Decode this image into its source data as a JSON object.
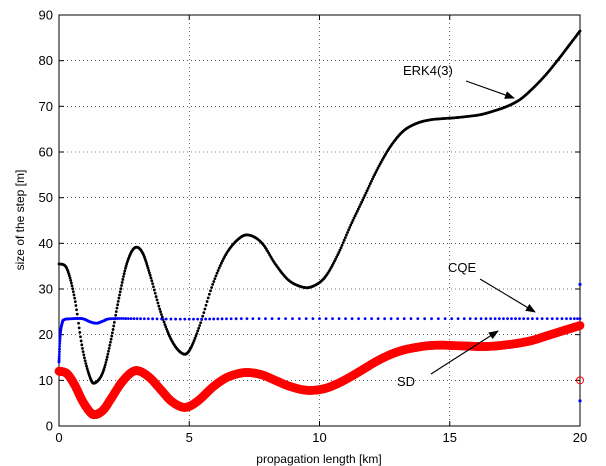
{
  "chart_data": {
    "type": "scatter",
    "title": "",
    "xlabel": "propagation length [km]",
    "ylabel": "size of the step [m]",
    "xlim": [
      0,
      20
    ],
    "ylim": [
      0,
      90
    ],
    "x_ticks": [
      "0",
      "5",
      "10",
      "15",
      "20"
    ],
    "y_ticks": [
      "0",
      "10",
      "20",
      "30",
      "40",
      "50",
      "60",
      "70",
      "80",
      "90"
    ],
    "grid": true,
    "legend": "none",
    "series": [
      {
        "name": "ERK4(3)",
        "color": "#000000",
        "marker": "dot",
        "points": [
          [
            0,
            35.5
          ],
          [
            0.3,
            34.5
          ],
          [
            0.6,
            28
          ],
          [
            0.9,
            17
          ],
          [
            1.2,
            10.5
          ],
          [
            1.4,
            9.5
          ],
          [
            1.7,
            12
          ],
          [
            2.0,
            19
          ],
          [
            2.3,
            28
          ],
          [
            2.6,
            35.5
          ],
          [
            2.9,
            39
          ],
          [
            3.2,
            38
          ],
          [
            3.5,
            33
          ],
          [
            3.9,
            25
          ],
          [
            4.3,
            19
          ],
          [
            4.7,
            16
          ],
          [
            5.0,
            16.5
          ],
          [
            5.4,
            22
          ],
          [
            5.9,
            31
          ],
          [
            6.4,
            37.5
          ],
          [
            6.9,
            41
          ],
          [
            7.3,
            41.8
          ],
          [
            7.8,
            40
          ],
          [
            8.3,
            35.5
          ],
          [
            8.8,
            32
          ],
          [
            9.3,
            30.5
          ],
          [
            9.7,
            30.5
          ],
          [
            10.2,
            32.5
          ],
          [
            10.7,
            37.5
          ],
          [
            11.2,
            44
          ],
          [
            11.7,
            50
          ],
          [
            12.2,
            56
          ],
          [
            12.7,
            61
          ],
          [
            13.2,
            64.5
          ],
          [
            13.7,
            66.2
          ],
          [
            14.2,
            67
          ],
          [
            14.7,
            67.3
          ],
          [
            15.2,
            67.5
          ],
          [
            15.7,
            67.8
          ],
          [
            16.2,
            68.2
          ],
          [
            16.7,
            69
          ],
          [
            17.2,
            70
          ],
          [
            17.7,
            71.5
          ],
          [
            18.2,
            74
          ],
          [
            18.7,
            77
          ],
          [
            19.2,
            80.5
          ],
          [
            19.6,
            83.5
          ],
          [
            20,
            86.5
          ]
        ],
        "annotation": "ERK4(3)"
      },
      {
        "name": "CQE",
        "color": "#0000ff",
        "marker": "dot",
        "points": [
          [
            0,
            14
          ],
          [
            0.05,
            20
          ],
          [
            0.12,
            22.5
          ],
          [
            0.2,
            23.3
          ],
          [
            0.5,
            23.5
          ],
          [
            0.9,
            23.5
          ],
          [
            1.2,
            22.8
          ],
          [
            1.45,
            22.5
          ],
          [
            1.7,
            23
          ],
          [
            2.0,
            23.5
          ],
          [
            3,
            23.5
          ],
          [
            5,
            23.4
          ],
          [
            7,
            23.5
          ],
          [
            10,
            23.5
          ],
          [
            13,
            23.5
          ],
          [
            16,
            23.5
          ],
          [
            18,
            23.5
          ],
          [
            20,
            23.5
          ]
        ],
        "outliers": [
          [
            20,
            31
          ],
          [
            20,
            5.5
          ]
        ],
        "annotation": "CQE"
      },
      {
        "name": "SD",
        "color": "#ff0000",
        "marker": "circle",
        "points": [
          [
            0,
            12
          ],
          [
            0.3,
            11.5
          ],
          [
            0.6,
            9
          ],
          [
            0.9,
            5.5
          ],
          [
            1.2,
            3
          ],
          [
            1.4,
            2.5
          ],
          [
            1.7,
            3.5
          ],
          [
            2.0,
            6
          ],
          [
            2.4,
            9.5
          ],
          [
            2.8,
            11.8
          ],
          [
            3.1,
            12
          ],
          [
            3.5,
            10.5
          ],
          [
            3.9,
            8
          ],
          [
            4.3,
            5.5
          ],
          [
            4.7,
            4.2
          ],
          [
            5.0,
            4.3
          ],
          [
            5.4,
            5.8
          ],
          [
            5.9,
            8.5
          ],
          [
            6.4,
            10.5
          ],
          [
            6.9,
            11.5
          ],
          [
            7.3,
            11.7
          ],
          [
            7.8,
            11.2
          ],
          [
            8.3,
            10
          ],
          [
            8.8,
            8.8
          ],
          [
            9.3,
            8
          ],
          [
            9.7,
            7.8
          ],
          [
            10.2,
            8.2
          ],
          [
            10.7,
            9.3
          ],
          [
            11.2,
            10.8
          ],
          [
            11.7,
            12.5
          ],
          [
            12.2,
            14.2
          ],
          [
            12.7,
            15.6
          ],
          [
            13.2,
            16.6
          ],
          [
            13.7,
            17.2
          ],
          [
            14.2,
            17.6
          ],
          [
            14.7,
            17.7
          ],
          [
            15.2,
            17.6
          ],
          [
            15.7,
            17.5
          ],
          [
            16.2,
            17.4
          ],
          [
            16.7,
            17.5
          ],
          [
            17.2,
            17.8
          ],
          [
            17.7,
            18.2
          ],
          [
            18.2,
            18.8
          ],
          [
            18.7,
            19.7
          ],
          [
            19.2,
            20.6
          ],
          [
            19.6,
            21.3
          ],
          [
            20,
            22
          ]
        ],
        "outliers": [
          [
            20,
            10
          ]
        ],
        "annotation": "SD"
      }
    ]
  }
}
